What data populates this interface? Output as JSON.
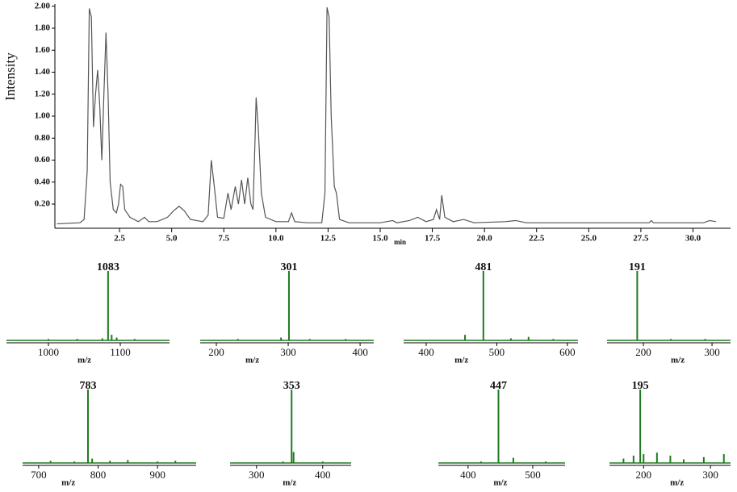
{
  "chart_data": [
    {
      "type": "line",
      "ylabel": "Intensity",
      "xlabel": "min",
      "color": "#555555",
      "xlim": [
        -0.6,
        31.8
      ],
      "ylim": [
        -0.02,
        2.02
      ],
      "yticks": [
        {
          "value": 0.2,
          "label": "0.20"
        },
        {
          "value": 0.4,
          "label": "0.40"
        },
        {
          "value": 0.6,
          "label": "0.60"
        },
        {
          "value": 0.8,
          "label": "0.80"
        },
        {
          "value": 1.0,
          "label": "1.00"
        },
        {
          "value": 1.2,
          "label": "1.20"
        },
        {
          "value": 1.4,
          "label": "1.40"
        },
        {
          "value": 1.6,
          "label": "1.60"
        },
        {
          "value": 1.8,
          "label": "1.80"
        },
        {
          "value": 2.0,
          "label": "2.00"
        }
      ],
      "xticks": [
        2.5,
        {
          "value": 5,
          "label": "5.0"
        },
        7.5,
        {
          "value": 10,
          "label": "10.0"
        },
        12.5,
        {
          "value": 15,
          "label": "15.0"
        },
        17.5,
        {
          "value": 20,
          "label": "20.0"
        },
        22.5,
        {
          "value": 25,
          "label": "25.0"
        },
        27.5,
        {
          "value": 30,
          "label": "30.0"
        }
      ],
      "x": [
        -0.5,
        0.6,
        0.8,
        0.95,
        1.05,
        1.15,
        1.25,
        1.35,
        1.45,
        1.55,
        1.65,
        1.75,
        1.85,
        1.95,
        2.05,
        2.2,
        2.35,
        2.45,
        2.55,
        2.65,
        2.75,
        3.0,
        3.4,
        3.7,
        3.9,
        4.3,
        4.8,
        5.1,
        5.35,
        5.6,
        5.9,
        6.2,
        6.5,
        6.75,
        6.9,
        7.05,
        7.2,
        7.5,
        7.7,
        7.85,
        8.05,
        8.2,
        8.35,
        8.5,
        8.65,
        8.8,
        8.9,
        9.0,
        9.05,
        9.15,
        9.3,
        9.5,
        10.0,
        10.6,
        10.75,
        10.9,
        11.5,
        12.2,
        12.35,
        12.45,
        12.55,
        12.65,
        12.8,
        12.9,
        13.05,
        13.5,
        15.0,
        15.6,
        15.8,
        16.4,
        16.8,
        17.2,
        17.55,
        17.7,
        17.85,
        17.95,
        18.1,
        18.5,
        19.0,
        19.5,
        21.0,
        21.5,
        22.0,
        25.0,
        27.9,
        28.0,
        28.1,
        30.5,
        30.8,
        31.1
      ],
      "values": [
        0.02,
        0.03,
        0.06,
        0.5,
        1.98,
        1.9,
        0.9,
        1.2,
        1.42,
        1.1,
        0.6,
        1.2,
        1.76,
        1.2,
        0.4,
        0.15,
        0.12,
        0.2,
        0.38,
        0.36,
        0.15,
        0.08,
        0.04,
        0.08,
        0.04,
        0.04,
        0.08,
        0.14,
        0.18,
        0.14,
        0.06,
        0.05,
        0.04,
        0.1,
        0.6,
        0.35,
        0.08,
        0.07,
        0.3,
        0.15,
        0.36,
        0.2,
        0.42,
        0.2,
        0.44,
        0.2,
        0.15,
        0.8,
        1.17,
        0.9,
        0.3,
        0.08,
        0.04,
        0.04,
        0.12,
        0.04,
        0.03,
        0.03,
        0.3,
        1.99,
        1.9,
        1.0,
        0.36,
        0.3,
        0.06,
        0.03,
        0.03,
        0.05,
        0.03,
        0.05,
        0.08,
        0.04,
        0.06,
        0.15,
        0.06,
        0.28,
        0.08,
        0.04,
        0.06,
        0.03,
        0.04,
        0.05,
        0.03,
        0.03,
        0.03,
        0.05,
        0.03,
        0.03,
        0.05,
        0.04
      ]
    },
    {
      "type": "stick",
      "xlabel": "m/z",
      "color": "#1f7a1f",
      "xlim": [
        941.6,
        1168.5
      ],
      "ylim": [
        0,
        100
      ],
      "xticks": [
        1000,
        1100
      ],
      "x": [
        1000,
        1040,
        1075,
        1083,
        1088,
        1095,
        1120
      ],
      "values": [
        2,
        2,
        3,
        100,
        8,
        4,
        2
      ],
      "annotations": [
        {
          "x": 1083,
          "text": "1083"
        }
      ]
    },
    {
      "type": "stick",
      "xlabel": "m/z",
      "color": "#1f7a1f",
      "xlim": [
        177.5,
        419
      ],
      "ylim": [
        0,
        100
      ],
      "xticks": [
        200,
        300,
        400
      ],
      "x": [
        230,
        290,
        301,
        330,
        380
      ],
      "values": [
        2,
        4,
        100,
        2,
        2
      ],
      "annotations": [
        {
          "x": 301,
          "text": "301"
        }
      ]
    },
    {
      "type": "stick",
      "xlabel": "m/z",
      "color": "#1f7a1f",
      "xlim": [
        368,
        615
      ],
      "ylim": [
        0,
        100
      ],
      "xticks": [
        400,
        500,
        600
      ],
      "x": [
        455,
        481,
        520,
        545,
        580
      ],
      "values": [
        8,
        100,
        3,
        5,
        2
      ],
      "annotations": [
        {
          "x": 481,
          "text": "481"
        }
      ]
    },
    {
      "type": "stick",
      "xlabel": "m/z",
      "color": "#1f7a1f",
      "xlim": [
        147,
        327
      ],
      "ylim": [
        0,
        100
      ],
      "xticks": [
        200,
        300
      ],
      "x": [
        191,
        240,
        290
      ],
      "values": [
        100,
        2,
        2
      ],
      "annotations": [
        {
          "x": 191,
          "text": "191"
        }
      ]
    },
    {
      "type": "stick",
      "xlabel": "m/z",
      "color": "#1f7a1f",
      "xlim": [
        673,
        965
      ],
      "ylim": [
        0,
        100
      ],
      "xticks": [
        700,
        800,
        900
      ],
      "x": [
        720,
        760,
        783,
        790,
        820,
        850,
        900,
        930
      ],
      "values": [
        3,
        2,
        100,
        6,
        3,
        4,
        2,
        3
      ],
      "annotations": [
        {
          "x": 783,
          "text": "783"
        }
      ]
    },
    {
      "type": "stick",
      "xlabel": "m/z",
      "color": "#1f7a1f",
      "xlim": [
        260,
        443
      ],
      "ylim": [
        0,
        100
      ],
      "xticks": [
        300,
        400
      ],
      "x": [
        340,
        353,
        356,
        400
      ],
      "values": [
        2,
        100,
        15,
        2
      ],
      "annotations": [
        {
          "x": 353,
          "text": "353"
        }
      ]
    },
    {
      "type": "stick",
      "xlabel": "m/z",
      "color": "#1f7a1f",
      "xlim": [
        354,
        550
      ],
      "ylim": [
        0,
        100
      ],
      "xticks": [
        400,
        500
      ],
      "x": [
        420,
        447,
        470,
        520
      ],
      "values": [
        2,
        100,
        7,
        2
      ],
      "annotations": [
        {
          "x": 447,
          "text": "447"
        }
      ]
    },
    {
      "type": "stick",
      "xlabel": "m/z",
      "color": "#1f7a1f",
      "xlim": [
        149,
        330
      ],
      "ylim": [
        0,
        100
      ],
      "xticks": [
        200,
        300
      ],
      "x": [
        170,
        185,
        195,
        200,
        220,
        240,
        260,
        290,
        320
      ],
      "values": [
        6,
        10,
        100,
        12,
        14,
        10,
        5,
        8,
        12
      ],
      "annotations": [
        {
          "x": 195,
          "text": "195"
        }
      ]
    }
  ]
}
